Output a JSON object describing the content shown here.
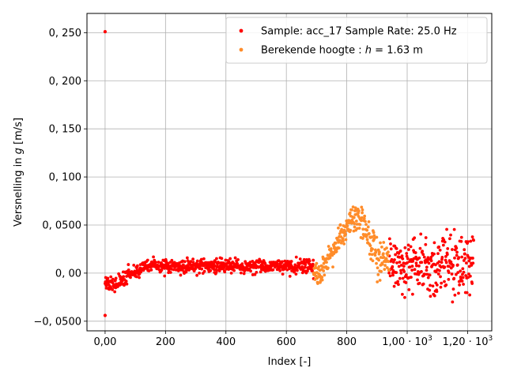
{
  "chart_data": {
    "type": "scatter",
    "xlabel": "Index [-]",
    "ylabel": "Versnelling in g [m/s]",
    "ylabel_parts": {
      "prefix": "Versnelling in ",
      "variable": "g",
      "suffix": " [m/s]"
    },
    "xlim": [
      -60,
      1280
    ],
    "ylim": [
      -0.06,
      0.27
    ],
    "grid": true,
    "legend_position": "top-right",
    "x_ticks": [
      {
        "value": 0,
        "label": "0,00"
      },
      {
        "value": 200,
        "label": "200"
      },
      {
        "value": 400,
        "label": "400"
      },
      {
        "value": 600,
        "label": "600"
      },
      {
        "value": 800,
        "label": "800"
      },
      {
        "value": 1000,
        "label": "1,00 · 10",
        "exponent": "3"
      },
      {
        "value": 1200,
        "label": "1,20 · 10",
        "exponent": "3"
      }
    ],
    "y_ticks": [
      {
        "value": -0.05,
        "label": "−0, 0500"
      },
      {
        "value": 0.0,
        "label": "0, 00"
      },
      {
        "value": 0.05,
        "label": "0, 0500"
      },
      {
        "value": 0.1,
        "label": "0, 100"
      },
      {
        "value": 0.15,
        "label": "0, 150"
      },
      {
        "value": 0.2,
        "label": "0, 200"
      },
      {
        "value": 0.25,
        "label": "0, 250"
      }
    ],
    "series": [
      {
        "name": "Sample: acc_17     Sample Rate: 25.0 Hz",
        "color": "#ff0000",
        "segments": [
          {
            "x_start": 0,
            "x_end": 690,
            "step": 1
          },
          {
            "x_start": 940,
            "x_end": 1220,
            "step": 1
          }
        ],
        "outliers": [
          {
            "x": 0,
            "y": 0.251
          },
          {
            "x": 0,
            "y": -0.044
          }
        ]
      },
      {
        "name": "Berekende hoogte :     h = 1.63 m",
        "name_parts": {
          "prefix": "Berekende hoogte :     ",
          "variable": "h",
          "suffix": " = 1.63 m"
        },
        "color": "#ff8c2a",
        "segments": [
          {
            "x_start": 690,
            "x_end": 940,
            "step": 1
          }
        ]
      }
    ]
  }
}
